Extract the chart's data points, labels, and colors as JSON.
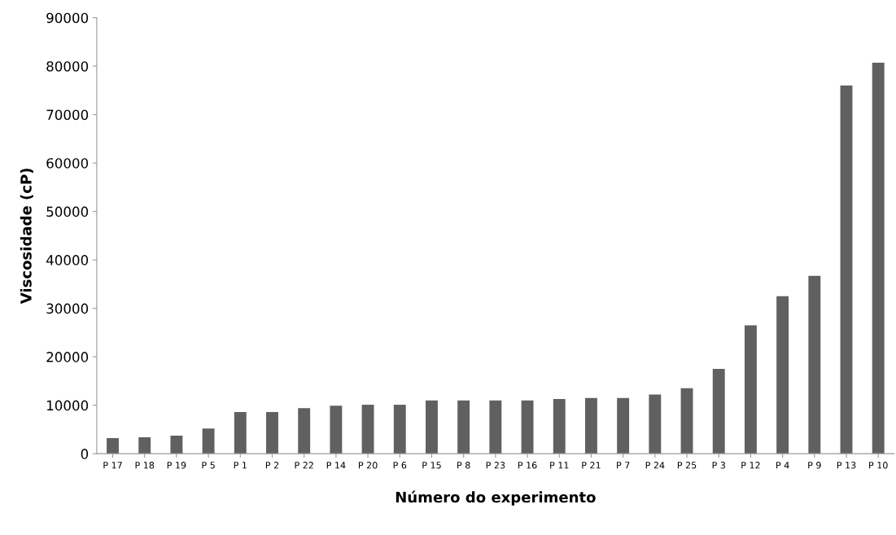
{
  "chart_data": {
    "type": "bar",
    "xlabel": "Número do experimento",
    "ylabel": "Viscosidade (cP)",
    "categories": [
      "P 17",
      "P 18",
      "P 19",
      "P 5",
      "P 1",
      "P 2",
      "P 22",
      "P 14",
      "P 20",
      "P 6",
      "P 15",
      "P 8",
      "P 23",
      "P 16",
      "P 11",
      "P 21",
      "P 7",
      "P 24",
      "P 25",
      "P 3",
      "P 12",
      "P 4",
      "P 9",
      "P 13",
      "P 10"
    ],
    "values": [
      3200,
      3400,
      3700,
      5200,
      8600,
      8600,
      9400,
      9900,
      10100,
      10100,
      11000,
      11000,
      11000,
      11000,
      11300,
      11500,
      11500,
      12200,
      13500,
      17500,
      26500,
      32500,
      36700,
      76000,
      80700
    ],
    "color": "#606060",
    "ylim": [
      0,
      90000
    ],
    "yticks": [
      0,
      10000,
      20000,
      30000,
      40000,
      50000,
      60000,
      70000,
      80000,
      90000
    ],
    "grid": false,
    "legend": false
  }
}
